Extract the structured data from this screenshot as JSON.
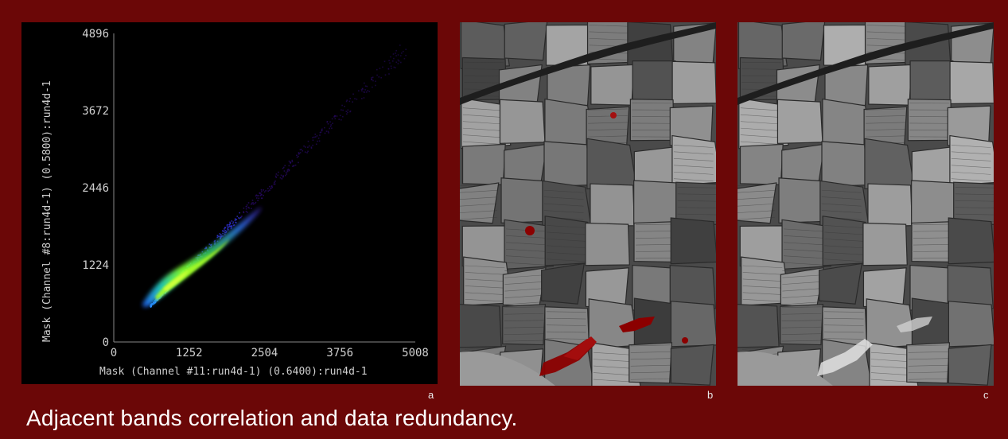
{
  "figure": {
    "caption": "Adjacent bands correlation and data redundancy.",
    "panels": [
      {
        "letter": "a"
      },
      {
        "letter": "b"
      },
      {
        "letter": "c"
      }
    ]
  },
  "chart_data": {
    "type": "scatter",
    "xlabel": "Mask (Channel #11:run4d-1) (0.6400):run4d-1",
    "ylabel": "Mask (Channel #8:run4d-1) (0.5800):run4d-1",
    "xlim": [
      0,
      5008
    ],
    "ylim": [
      0,
      4896
    ],
    "x_ticks": [
      "0",
      "1252",
      "2504",
      "3756",
      "5008"
    ],
    "y_ticks": [
      "0",
      "1224",
      "2446",
      "3672",
      "4896"
    ],
    "grid": false,
    "colormap": [
      "#2a0a6a",
      "#3030d0",
      "#2a90ff",
      "#20d0c0",
      "#30e040",
      "#c8ff20"
    ]
  }
}
